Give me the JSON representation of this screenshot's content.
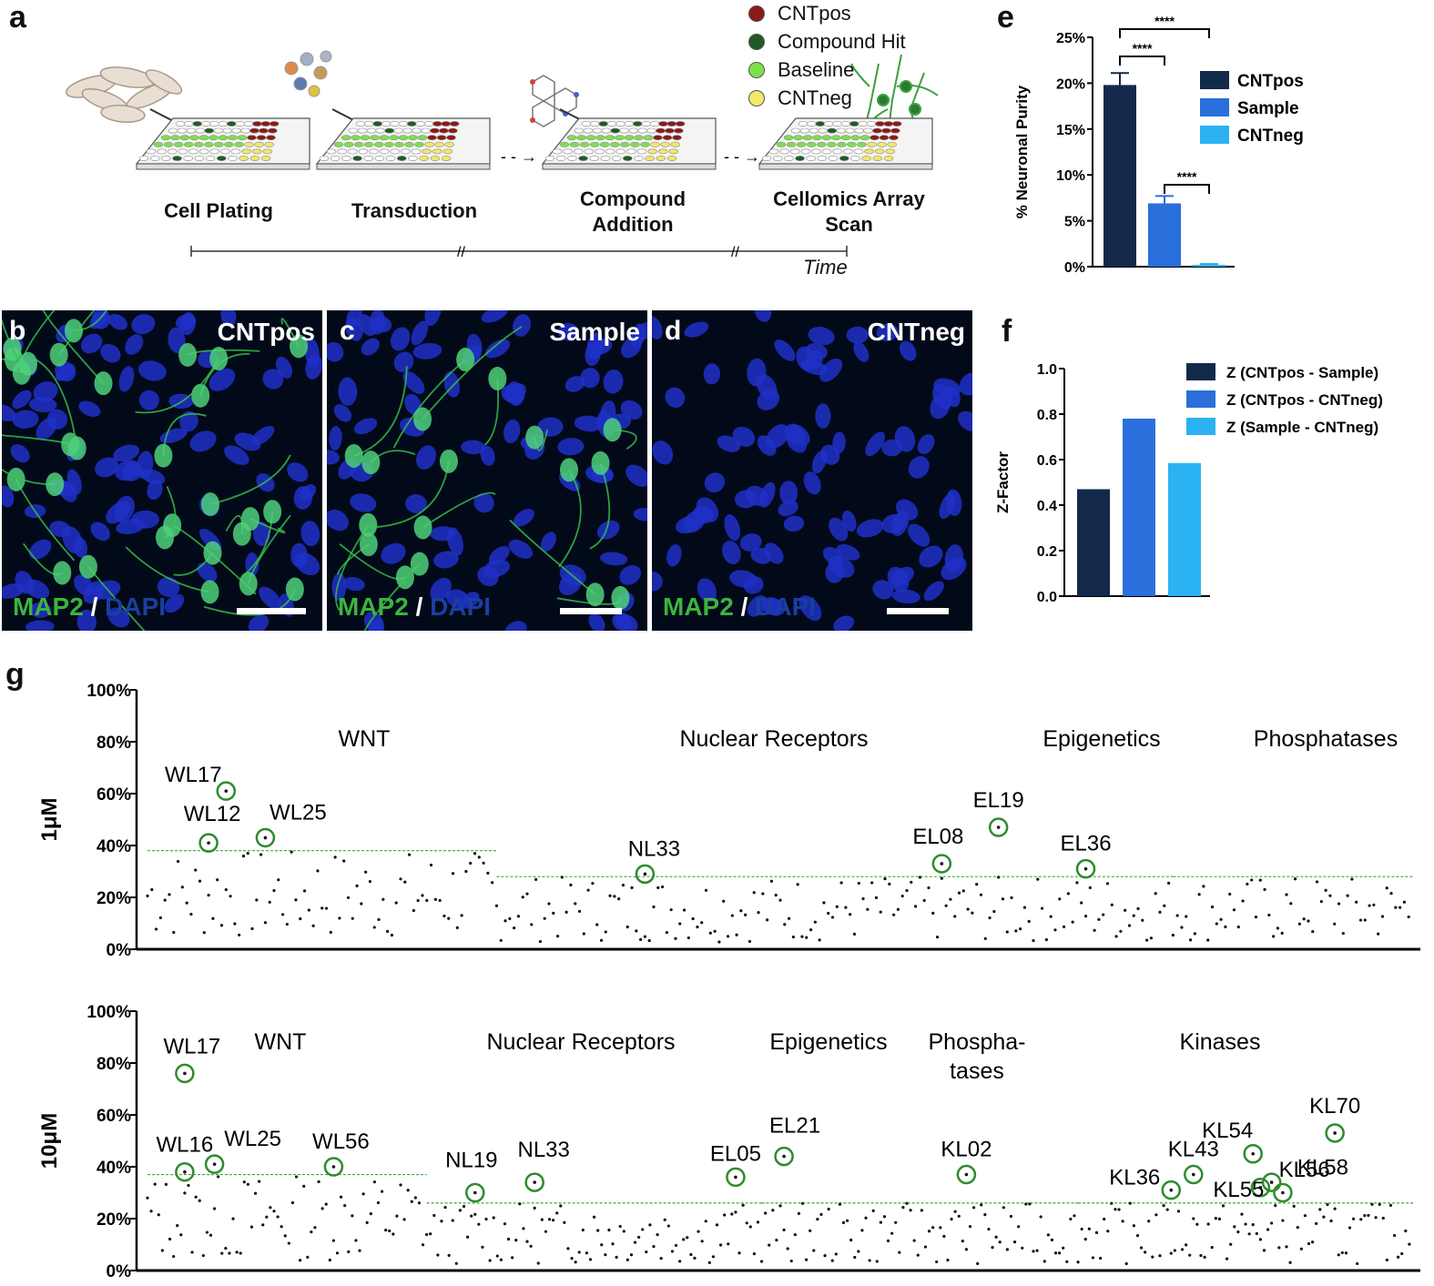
{
  "panel_a": {
    "label": "a",
    "legend": [
      {
        "label": "CNTpos",
        "color": "#8b1a1a"
      },
      {
        "label": "Compound Hit",
        "color": "#1e5a28"
      },
      {
        "label": "Baseline",
        "color": "#7ee04a"
      },
      {
        "label": "CNTneg",
        "color": "#f2e86a"
      }
    ],
    "steps": [
      "Cell Plating",
      "Transduction",
      "Compound Addition",
      "Cellomics Array Scan"
    ],
    "time_label": "Time"
  },
  "panel_micro": [
    {
      "label": "b",
      "title": "CNTpos",
      "stain_green": "MAP2",
      "slash": "/",
      "stain_blue": "DAPI",
      "neuron_density": 1.0
    },
    {
      "label": "c",
      "title": "Sample",
      "stain_green": "MAP2",
      "slash": "/",
      "stain_blue": "DAPI",
      "neuron_density": 0.6
    },
    {
      "label": "d",
      "title": "CNTneg",
      "stain_green": "MAP2",
      "slash": "/",
      "stain_blue": "DAPI",
      "neuron_density": 0.0
    }
  ],
  "chart_data": [
    {
      "panel": "e",
      "type": "bar",
      "categories": [
        "CNTpos",
        "Sample",
        "CNTneg"
      ],
      "values": [
        19.8,
        6.9,
        0.2
      ],
      "errors": [
        1.3,
        0.8,
        0.1
      ],
      "colors": [
        "#13294b",
        "#2a6fdb",
        "#2bb2f2"
      ],
      "ylabel": "% Neuronal Purity",
      "ylim": [
        0,
        25
      ],
      "yticks": [
        "0%",
        "5%",
        "10%",
        "15%",
        "20%",
        "25%"
      ],
      "legend": [
        "CNTpos",
        "Sample",
        "CNTneg"
      ],
      "significance": [
        {
          "pair": [
            "CNTpos",
            "Sample"
          ],
          "label": "****"
        },
        {
          "pair": [
            "CNTpos",
            "CNTneg"
          ],
          "label": "****"
        },
        {
          "pair": [
            "Sample",
            "CNTneg"
          ],
          "label": "****"
        }
      ]
    },
    {
      "panel": "f",
      "type": "bar",
      "categories": [
        "Z (CNTpos - Sample)",
        "Z (CNTpos - CNTneg)",
        "Z (Sample - CNTneg)"
      ],
      "values": [
        0.47,
        0.78,
        0.585
      ],
      "colors": [
        "#13294b",
        "#2a6fdb",
        "#2bb2f2"
      ],
      "ylabel": "Z-Factor",
      "ylim": [
        0,
        1.0
      ],
      "yticks": [
        "0.0",
        "0.2",
        "0.4",
        "0.6",
        "0.8",
        "1.0"
      ],
      "legend": [
        "Z (CNTpos - Sample)",
        "Z (CNTpos - CNTneg)",
        "Z (Sample - CNTneg)"
      ]
    },
    {
      "panel": "g",
      "row": "1μM",
      "type": "scatter",
      "ylim": [
        0,
        100
      ],
      "yticks": [
        "0%",
        "20%",
        "40%",
        "60%",
        "80%",
        "100%"
      ],
      "point_count": 290,
      "groups": [
        {
          "name": "WNT",
          "x_range": [
            0,
            80
          ],
          "threshold": 38
        },
        {
          "name": "Nuclear Receptors",
          "x_range": [
            80,
            175
          ],
          "threshold": 28
        },
        {
          "name": "Epigenetics",
          "x_range": [
            175,
            235
          ],
          "threshold": 28
        },
        {
          "name": "Phosphatases",
          "x_range": [
            235,
            290
          ],
          "threshold": 28
        }
      ],
      "hits": [
        {
          "label": "WL17",
          "x": 18,
          "y": 61
        },
        {
          "label": "WL12",
          "x": 14,
          "y": 41
        },
        {
          "label": "WL25",
          "x": 27,
          "y": 43
        },
        {
          "label": "NL33",
          "x": 114,
          "y": 29
        },
        {
          "label": "EL08",
          "x": 182,
          "y": 33
        },
        {
          "label": "EL19",
          "x": 195,
          "y": 47
        },
        {
          "label": "EL36",
          "x": 215,
          "y": 31
        }
      ]
    },
    {
      "panel": "g",
      "row": "10μM",
      "type": "scatter",
      "ylim": [
        0,
        100
      ],
      "yticks": [
        "0%",
        "20%",
        "40%",
        "60%",
        "80%",
        "100%"
      ],
      "point_count": 340,
      "groups": [
        {
          "name": "WNT",
          "x_range": [
            0,
            75
          ],
          "threshold": 37
        },
        {
          "name": "Nuclear Receptors",
          "x_range": [
            75,
            165
          ],
          "threshold": 26
        },
        {
          "name": "Epigenetics",
          "x_range": [
            165,
            220
          ],
          "threshold": 26
        },
        {
          "name": "Phospha-\ntases",
          "x_range": [
            220,
            250
          ],
          "threshold": 26
        },
        {
          "name": "Kinases",
          "x_range": [
            250,
            340
          ],
          "threshold": 26
        }
      ],
      "hits": [
        {
          "label": "WL17",
          "x": 10,
          "y": 76
        },
        {
          "label": "WL16",
          "x": 10,
          "y": 38
        },
        {
          "label": "WL25",
          "x": 18,
          "y": 41
        },
        {
          "label": "WL56",
          "x": 50,
          "y": 40
        },
        {
          "label": "NL19",
          "x": 88,
          "y": 30
        },
        {
          "label": "NL33",
          "x": 104,
          "y": 34
        },
        {
          "label": "EL05",
          "x": 158,
          "y": 36
        },
        {
          "label": "EL21",
          "x": 171,
          "y": 44
        },
        {
          "label": "KL02",
          "x": 220,
          "y": 37
        },
        {
          "label": "KL36",
          "x": 275,
          "y": 31
        },
        {
          "label": "KL43",
          "x": 281,
          "y": 37
        },
        {
          "label": "KL54",
          "x": 297,
          "y": 45
        },
        {
          "label": "KL55",
          "x": 299,
          "y": 32
        },
        {
          "label": "KL56",
          "x": 302,
          "y": 34
        },
        {
          "label": "KL58",
          "x": 305,
          "y": 30
        },
        {
          "label": "KL70",
          "x": 319,
          "y": 53
        }
      ]
    }
  ],
  "panel_e_label": "e",
  "panel_f_label": "f",
  "panel_g_label": "g",
  "g_row_labels": [
    "1μM",
    "10μM"
  ],
  "hit_circle_color": "#2e8b2e",
  "threshold_color": "#3aa83a"
}
